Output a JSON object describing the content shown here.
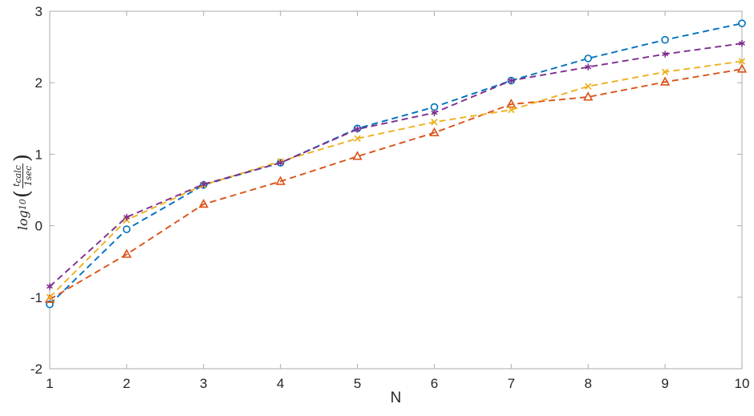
{
  "figure": {
    "background": "#ffffff"
  },
  "chart_labels": {
    "ylabel_func": "log",
    "ylabel_func_sub": "10",
    "open_paren": "(",
    "close_paren": ")",
    "numerator_base": "t",
    "numerator_sub": "calc",
    "denominator": "1sec"
  },
  "chart_data": {
    "type": "line",
    "title": "",
    "xlabel": "N",
    "ylabel": "log10(t_calc / 1sec)",
    "x": [
      1,
      2,
      3,
      4,
      5,
      6,
      7,
      8,
      9,
      10
    ],
    "xlim": [
      1,
      10
    ],
    "ylim": [
      -2,
      3
    ],
    "xticks": [
      1,
      2,
      3,
      4,
      5,
      6,
      7,
      8,
      9,
      10
    ],
    "yticks": [
      -2,
      -1,
      0,
      1,
      2,
      3
    ],
    "grid": false,
    "legend": null,
    "line_style": "dashed",
    "axis_color": "#ababab",
    "tick_label_color": "#262626",
    "series": [
      {
        "name": "blue-circles",
        "color": "#0072BD",
        "marker": "circle",
        "values": [
          -1.1,
          -0.05,
          0.57,
          0.88,
          1.36,
          1.66,
          2.03,
          2.34,
          2.6,
          2.83
        ]
      },
      {
        "name": "orange-triangles",
        "color": "#D95319",
        "marker": "triangle",
        "values": [
          -1.03,
          -0.4,
          0.3,
          0.62,
          0.97,
          1.3,
          1.7,
          1.8,
          2.01,
          2.19
        ]
      },
      {
        "name": "yellow-crosses",
        "color": "#EDB120",
        "marker": "x",
        "values": [
          -1.0,
          0.08,
          0.57,
          0.9,
          1.22,
          1.45,
          1.62,
          1.95,
          2.15,
          2.3
        ]
      },
      {
        "name": "purple-asterisks",
        "color": "#7E2F8E",
        "marker": "asterisk",
        "values": [
          -0.85,
          0.12,
          0.58,
          0.88,
          1.35,
          1.58,
          2.03,
          2.22,
          2.4,
          2.55
        ]
      }
    ]
  }
}
